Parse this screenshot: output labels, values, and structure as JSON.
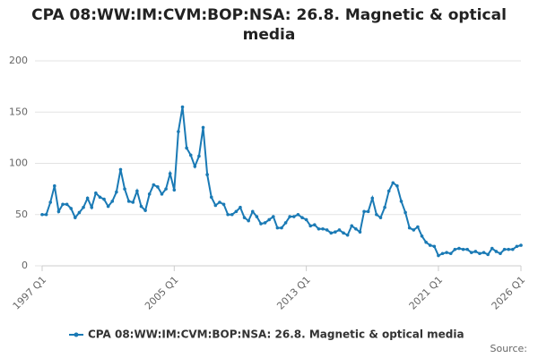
{
  "chart_data": {
    "type": "line",
    "title": "CPA 08:WW:IM:CVM:BOP:NSA: 26.8. Magnetic & optical media",
    "source": "Source:",
    "categories": [
      "1997 Q1",
      null,
      null,
      null,
      null,
      null,
      null,
      null,
      null,
      null,
      null,
      null,
      null,
      null,
      null,
      null,
      null,
      null,
      null,
      null,
      null,
      null,
      null,
      null,
      null,
      null,
      null,
      null,
      null,
      null,
      null,
      null,
      "2005 Q1",
      null,
      null,
      null,
      null,
      null,
      null,
      null,
      null,
      null,
      null,
      null,
      null,
      null,
      null,
      null,
      null,
      null,
      null,
      null,
      null,
      null,
      null,
      null,
      null,
      null,
      null,
      null,
      null,
      null,
      null,
      null,
      "2013 Q1",
      null,
      null,
      null,
      null,
      null,
      null,
      null,
      null,
      null,
      null,
      null,
      null,
      null,
      null,
      null,
      null,
      null,
      null,
      null,
      null,
      null,
      null,
      null,
      null,
      null,
      null,
      null,
      null,
      null,
      null,
      null,
      "2021 Q1",
      null,
      null,
      null,
      null,
      null,
      null,
      null,
      null,
      null,
      null,
      null,
      null,
      null,
      null,
      null,
      null,
      null,
      null,
      null,
      "2026 Q1"
    ],
    "series": [
      {
        "name": "CPA 08:WW:IM:CVM:BOP:NSA: 26.8. Magnetic & optical media",
        "color": "#1a7ab5",
        "values": [
          50,
          50,
          62,
          78,
          53,
          60,
          60,
          56,
          47,
          52,
          57,
          66,
          57,
          71,
          67,
          65,
          58,
          63,
          72,
          94,
          75,
          63,
          62,
          73,
          58,
          54,
          70,
          79,
          77,
          70,
          75,
          90,
          74,
          131,
          155,
          115,
          108,
          97,
          107,
          135,
          89,
          67,
          59,
          62,
          60,
          50,
          50,
          53,
          57,
          47,
          44,
          53,
          48,
          41,
          42,
          45,
          48,
          37,
          37,
          42,
          48,
          48,
          50,
          47,
          45,
          39,
          40,
          36,
          36,
          35,
          32,
          33,
          35,
          32,
          30,
          39,
          36,
          33,
          53,
          53,
          66,
          50,
          47,
          57,
          73,
          81,
          78,
          63,
          52,
          37,
          35,
          38,
          29,
          23,
          20,
          19,
          10,
          12,
          13,
          12,
          16,
          17,
          16,
          16,
          13,
          14,
          12,
          13,
          11,
          17,
          14,
          12,
          16,
          16,
          16,
          19,
          20
        ]
      }
    ],
    "ylim": [
      0,
      200
    ],
    "yticks": [
      0,
      50,
      100,
      150,
      200
    ],
    "grid": true
  }
}
